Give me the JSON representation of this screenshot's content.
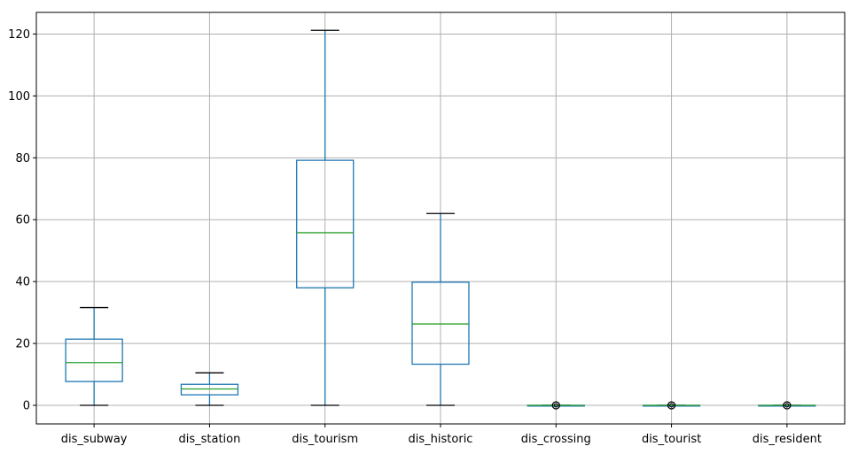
{
  "chart_data": {
    "type": "boxplot",
    "title": "",
    "xlabel": "",
    "ylabel": "",
    "ylim": [
      -6,
      127
    ],
    "yticks": [
      0,
      20,
      40,
      60,
      80,
      100,
      120
    ],
    "grid": true,
    "categories": [
      "dis_subway",
      "dis_station",
      "dis_tourism",
      "dis_historic",
      "dis_crossing",
      "dis_tourist",
      "dis_resident"
    ],
    "boxes": [
      {
        "name": "dis_subway",
        "whislo": 0,
        "q1": 7.7,
        "med": 13.8,
        "q3": 21.4,
        "whishi": 31.6,
        "fliers": []
      },
      {
        "name": "dis_station",
        "whislo": 0,
        "q1": 3.4,
        "med": 5.3,
        "q3": 6.8,
        "whishi": 10.5,
        "fliers": []
      },
      {
        "name": "dis_tourism",
        "whislo": 0,
        "q1": 38.0,
        "med": 55.8,
        "q3": 79.2,
        "whishi": 121.2,
        "fliers": []
      },
      {
        "name": "dis_historic",
        "whislo": 0,
        "q1": 13.3,
        "med": 26.3,
        "q3": 39.8,
        "whishi": 62.0,
        "fliers": []
      },
      {
        "name": "dis_crossing",
        "whislo": 0,
        "q1": 0,
        "med": 0,
        "q3": 0,
        "whishi": 0,
        "fliers": [
          0
        ]
      },
      {
        "name": "dis_tourist",
        "whislo": 0,
        "q1": 0,
        "med": 0,
        "q3": 0,
        "whishi": 0,
        "fliers": [
          0
        ]
      },
      {
        "name": "dis_resident",
        "whislo": 0,
        "q1": 0,
        "med": 0,
        "q3": 0,
        "whishi": 0,
        "fliers": [
          0
        ]
      }
    ],
    "colors": {
      "box": "#1f77b4",
      "median": "#2ca02c",
      "whisker_cap": "#000000",
      "grid": "#b0b0b0",
      "flier": "#000000"
    }
  }
}
